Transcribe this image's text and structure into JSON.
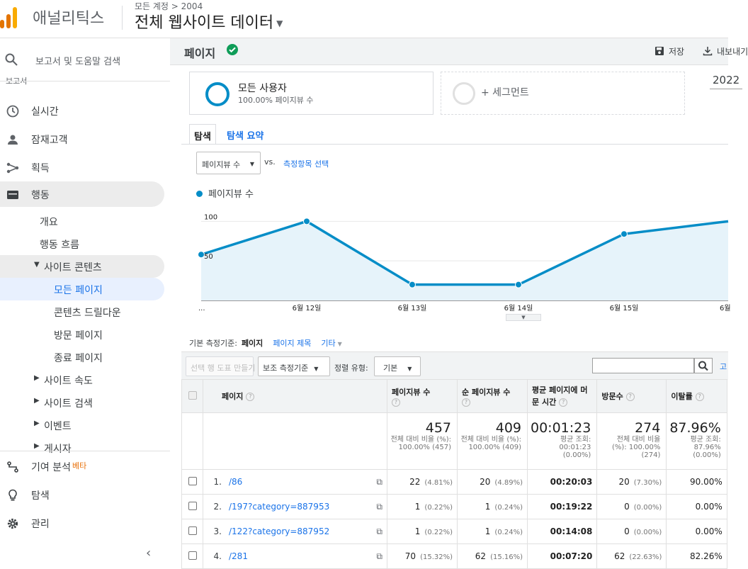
{
  "header": {
    "brand": "애널리틱스",
    "breadcrumb": "모든 계정 > 2004",
    "property": "전체 웹사이트 데이터",
    "logo_colors": [
      "#f9ab00",
      "#e37400",
      "#e37400"
    ]
  },
  "sidebar": {
    "search_label": "보고서 및 도움말 검색",
    "section_header": "보고서",
    "items": [
      {
        "label": "실시간",
        "icon": "clock-icon"
      },
      {
        "label": "잠재고객",
        "icon": "person-icon"
      },
      {
        "label": "획득",
        "icon": "acquisition-icon"
      },
      {
        "label": "행동",
        "icon": "behavior-icon"
      }
    ],
    "behavior_children": [
      {
        "label": "개요"
      },
      {
        "label": "행동 흐름"
      },
      {
        "label": "사이트 콘텐츠"
      }
    ],
    "site_content_children": [
      {
        "label": "모든 페이지"
      },
      {
        "label": "콘텐츠 드릴다운"
      },
      {
        "label": "방문 페이지"
      },
      {
        "label": "종료 페이지"
      }
    ],
    "more_groups": [
      {
        "label": "사이트 속도"
      },
      {
        "label": "사이트 검색"
      },
      {
        "label": "이벤트"
      },
      {
        "label": "게시자"
      }
    ],
    "bottom": [
      {
        "label": "기여 분석",
        "badge": "베타",
        "icon": "attribution-icon"
      },
      {
        "label": "탐색",
        "icon": "lightbulb-icon"
      },
      {
        "label": "관리",
        "icon": "gear-icon"
      }
    ]
  },
  "page": {
    "title": "페이지",
    "save_label": "저장",
    "export_label": "내보내기"
  },
  "segments": {
    "primary_name": "모든 사용자",
    "primary_sub": "100.00% 페이지뷰 수",
    "add_label": "+ 세그먼트",
    "date_range": "2022"
  },
  "tabs": {
    "explore": "탐색",
    "summary": "탐색 요약"
  },
  "chart_controls": {
    "metric": "페이지뷰 수",
    "vs": "vs.",
    "select_metric": "측정항목 선택"
  },
  "chart_data": {
    "type": "line",
    "legend": "페이지뷰 수",
    "x": [
      "...",
      "6월 12일",
      "6월 13일",
      "6월 14일",
      "6월 15일",
      "6월"
    ],
    "series": [
      {
        "name": "페이지뷰 수",
        "values": [
          58,
          100,
          20,
          20,
          84,
          100
        ]
      }
    ],
    "y_ticks": [
      "100",
      "50"
    ],
    "ylim": [
      0,
      120
    ],
    "color": "#058dc7"
  },
  "dimension_bar": {
    "label": "기본 측정기준:",
    "current": "페이지",
    "option1": "페이지 제목",
    "option2": "기타"
  },
  "toolbar": {
    "plot_rows": "선택 행 도표 만들기",
    "secondary_dim": "보조 측정기준",
    "sort_label": "정렬 유형:",
    "sort_value": "기본",
    "advanced": "고"
  },
  "table": {
    "columns": [
      "페이지",
      "페이지뷰 수",
      "순 페이지뷰 수",
      "평균 페이지에 머문 시간",
      "방문수",
      "이탈률"
    ],
    "totals": {
      "pageviews": "457",
      "pageviews_pct": "전체 대비 비율 (%): 100.00% (457)",
      "unique": "409",
      "unique_pct": "전체 대비 비율 (%): 100.00% (409)",
      "avg_time": "00:01:23",
      "avg_time_sub": "평균 조회: 00:01:23 (0.00%)",
      "entrances": "274",
      "entrances_pct": "전체 대비 비율 (%): 100.00% (274)",
      "bounce": "87.96%",
      "bounce_sub": "평균 조회: 87.96% (0.00%)"
    },
    "rows": [
      {
        "idx": "1.",
        "page": "/86",
        "pv": "22",
        "pv_pct": "(4.81%)",
        "upv": "20",
        "upv_pct": "(4.89%)",
        "time": "00:20:03",
        "ent": "20",
        "ent_pct": "(7.30%)",
        "bounce": "90.00%"
      },
      {
        "idx": "2.",
        "page": "/197?category=887953",
        "pv": "1",
        "pv_pct": "(0.22%)",
        "upv": "1",
        "upv_pct": "(0.24%)",
        "time": "00:19:22",
        "ent": "0",
        "ent_pct": "(0.00%)",
        "bounce": "0.00%"
      },
      {
        "idx": "3.",
        "page": "/122?category=887952",
        "pv": "1",
        "pv_pct": "(0.22%)",
        "upv": "1",
        "upv_pct": "(0.24%)",
        "time": "00:14:08",
        "ent": "0",
        "ent_pct": "(0.00%)",
        "bounce": "0.00%"
      },
      {
        "idx": "4.",
        "page": "/281",
        "pv": "70",
        "pv_pct": "(15.32%)",
        "upv": "62",
        "upv_pct": "(15.16%)",
        "time": "00:07:20",
        "ent": "62",
        "ent_pct": "(22.63%)",
        "bounce": "82.26%"
      }
    ]
  }
}
